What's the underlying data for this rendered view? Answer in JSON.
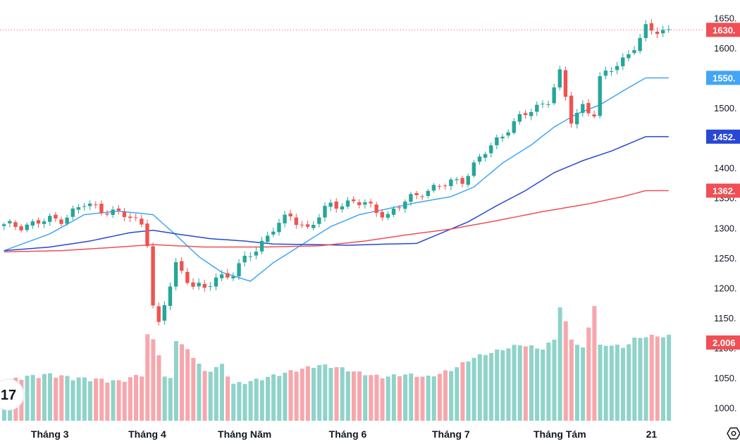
{
  "chart_data": {
    "type": "candlestick",
    "y_ticks": [
      "1000.",
      "1050.",
      "1100.",
      "1150.",
      "1200.",
      "1250.",
      "1300.",
      "1350.",
      "1400.",
      "1450.",
      "1500.",
      "1550.",
      "1600.",
      "1650."
    ],
    "y_range": [
      975,
      1668
    ],
    "x_ticks": [
      "Tháng 3",
      "Tháng 4",
      "Tháng Năm",
      "Tháng 6",
      "Tháng 7",
      "Tháng Tám",
      "21"
    ],
    "x_tick_index": [
      8,
      25,
      42,
      60,
      78,
      97,
      113
    ],
    "bar_count": 117,
    "price_key": [
      [
        0,
        1302
      ],
      [
        5,
        1307
      ],
      [
        10,
        1316
      ],
      [
        14,
        1338
      ],
      [
        18,
        1330
      ],
      [
        24,
        1309
      ],
      [
        25,
        1279
      ],
      [
        26,
        1170
      ],
      [
        27,
        1135
      ],
      [
        28,
        1170
      ],
      [
        29,
        1205
      ],
      [
        30,
        1240
      ],
      [
        33,
        1205
      ],
      [
        35,
        1195
      ],
      [
        37,
        1218
      ],
      [
        40,
        1225
      ],
      [
        44,
        1265
      ],
      [
        47,
        1300
      ],
      [
        50,
        1318
      ],
      [
        53,
        1300
      ],
      [
        57,
        1337
      ],
      [
        61,
        1345
      ],
      [
        63,
        1337
      ],
      [
        67,
        1322
      ],
      [
        70,
        1342
      ],
      [
        73,
        1362
      ],
      [
        76,
        1368
      ],
      [
        80,
        1382
      ],
      [
        84,
        1425
      ],
      [
        88,
        1468
      ],
      [
        92,
        1495
      ],
      [
        95,
        1515
      ],
      [
        97,
        1555
      ],
      [
        98,
        1515
      ],
      [
        99,
        1478
      ],
      [
        101,
        1505
      ],
      [
        103,
        1490
      ],
      [
        104,
        1545
      ],
      [
        106,
        1565
      ],
      [
        108,
        1582
      ],
      [
        110,
        1602
      ],
      [
        111,
        1612
      ],
      [
        112,
        1630
      ]
    ],
    "volume_key": [
      [
        0,
        52
      ],
      [
        3,
        58
      ],
      [
        8,
        62
      ],
      [
        12,
        57
      ],
      [
        16,
        55
      ],
      [
        20,
        52
      ],
      [
        24,
        62
      ],
      [
        25,
        118
      ],
      [
        26,
        110
      ],
      [
        27,
        92
      ],
      [
        28,
        58
      ],
      [
        29,
        55
      ],
      [
        30,
        112
      ],
      [
        33,
        88
      ],
      [
        35,
        65
      ],
      [
        38,
        75
      ],
      [
        40,
        48
      ],
      [
        43,
        52
      ],
      [
        47,
        60
      ],
      [
        51,
        68
      ],
      [
        55,
        75
      ],
      [
        58,
        72
      ],
      [
        62,
        64
      ],
      [
        66,
        58
      ],
      [
        70,
        62
      ],
      [
        74,
        58
      ],
      [
        78,
        68
      ],
      [
        82,
        86
      ],
      [
        86,
        95
      ],
      [
        90,
        104
      ],
      [
        94,
        98
      ],
      [
        96,
        112
      ],
      [
        97,
        158
      ],
      [
        99,
        112
      ],
      [
        101,
        98
      ],
      [
        103,
        160
      ],
      [
        104,
        102
      ],
      [
        106,
        104
      ],
      [
        108,
        100
      ],
      [
        110,
        112
      ],
      [
        112,
        116
      ]
    ],
    "series": [
      {
        "name": "",
        "color": "#42a5f5",
        "key": [
          [
            0,
            1262
          ],
          [
            8,
            1290
          ],
          [
            14,
            1322
          ],
          [
            20,
            1328
          ],
          [
            26,
            1322
          ],
          [
            30,
            1288
          ],
          [
            34,
            1252
          ],
          [
            38,
            1226
          ],
          [
            43,
            1211
          ],
          [
            47,
            1242
          ],
          [
            52,
            1272
          ],
          [
            57,
            1302
          ],
          [
            62,
            1322
          ],
          [
            67,
            1332
          ],
          [
            72,
            1342
          ],
          [
            78,
            1352
          ],
          [
            82,
            1368
          ],
          [
            87,
            1408
          ],
          [
            92,
            1438
          ],
          [
            96,
            1468
          ],
          [
            100,
            1490
          ],
          [
            104,
            1505
          ],
          [
            108,
            1528
          ],
          [
            112,
            1550
          ]
        ]
      },
      {
        "name": "",
        "color": "#2848d4",
        "key": [
          [
            0,
            1262
          ],
          [
            8,
            1268
          ],
          [
            15,
            1278
          ],
          [
            22,
            1292
          ],
          [
            26,
            1296
          ],
          [
            30,
            1290
          ],
          [
            36,
            1282
          ],
          [
            42,
            1278
          ],
          [
            47,
            1273
          ],
          [
            55,
            1272
          ],
          [
            60,
            1271
          ],
          [
            67,
            1273
          ],
          [
            72,
            1274
          ],
          [
            76,
            1290
          ],
          [
            81,
            1310
          ],
          [
            86,
            1337
          ],
          [
            91,
            1362
          ],
          [
            96,
            1392
          ],
          [
            101,
            1412
          ],
          [
            106,
            1428
          ],
          [
            112,
            1452
          ]
        ]
      },
      {
        "name": "",
        "color": "#ef4f55",
        "key": [
          [
            0,
            1260
          ],
          [
            10,
            1262
          ],
          [
            20,
            1268
          ],
          [
            26,
            1272
          ],
          [
            35,
            1268
          ],
          [
            45,
            1268
          ],
          [
            55,
            1270
          ],
          [
            63,
            1278
          ],
          [
            70,
            1288
          ],
          [
            78,
            1298
          ],
          [
            86,
            1312
          ],
          [
            94,
            1327
          ],
          [
            102,
            1340
          ],
          [
            108,
            1352
          ],
          [
            112,
            1362
          ]
        ]
      }
    ],
    "colors": {
      "up": "#26a69a",
      "down": "#ef5350",
      "vol_up": "#8fd3c9",
      "vol_down": "#f7a6ac"
    },
    "current_price": 1630,
    "price_labels": [
      {
        "text": "1630.",
        "value": 1630,
        "color": "#ef4f55"
      },
      {
        "text": "1550.",
        "value": 1550,
        "color": "#42a5f5"
      },
      {
        "text": "1452.",
        "value": 1452,
        "color": "#2848d4"
      },
      {
        "text": "1362.",
        "value": 1362,
        "color": "#ef4f55"
      }
    ],
    "volume_label": {
      "text": "2.006",
      "color": "#ef4f55"
    }
  },
  "logo_text": "17",
  "icons": {
    "settings": "settings-hex-icon"
  }
}
